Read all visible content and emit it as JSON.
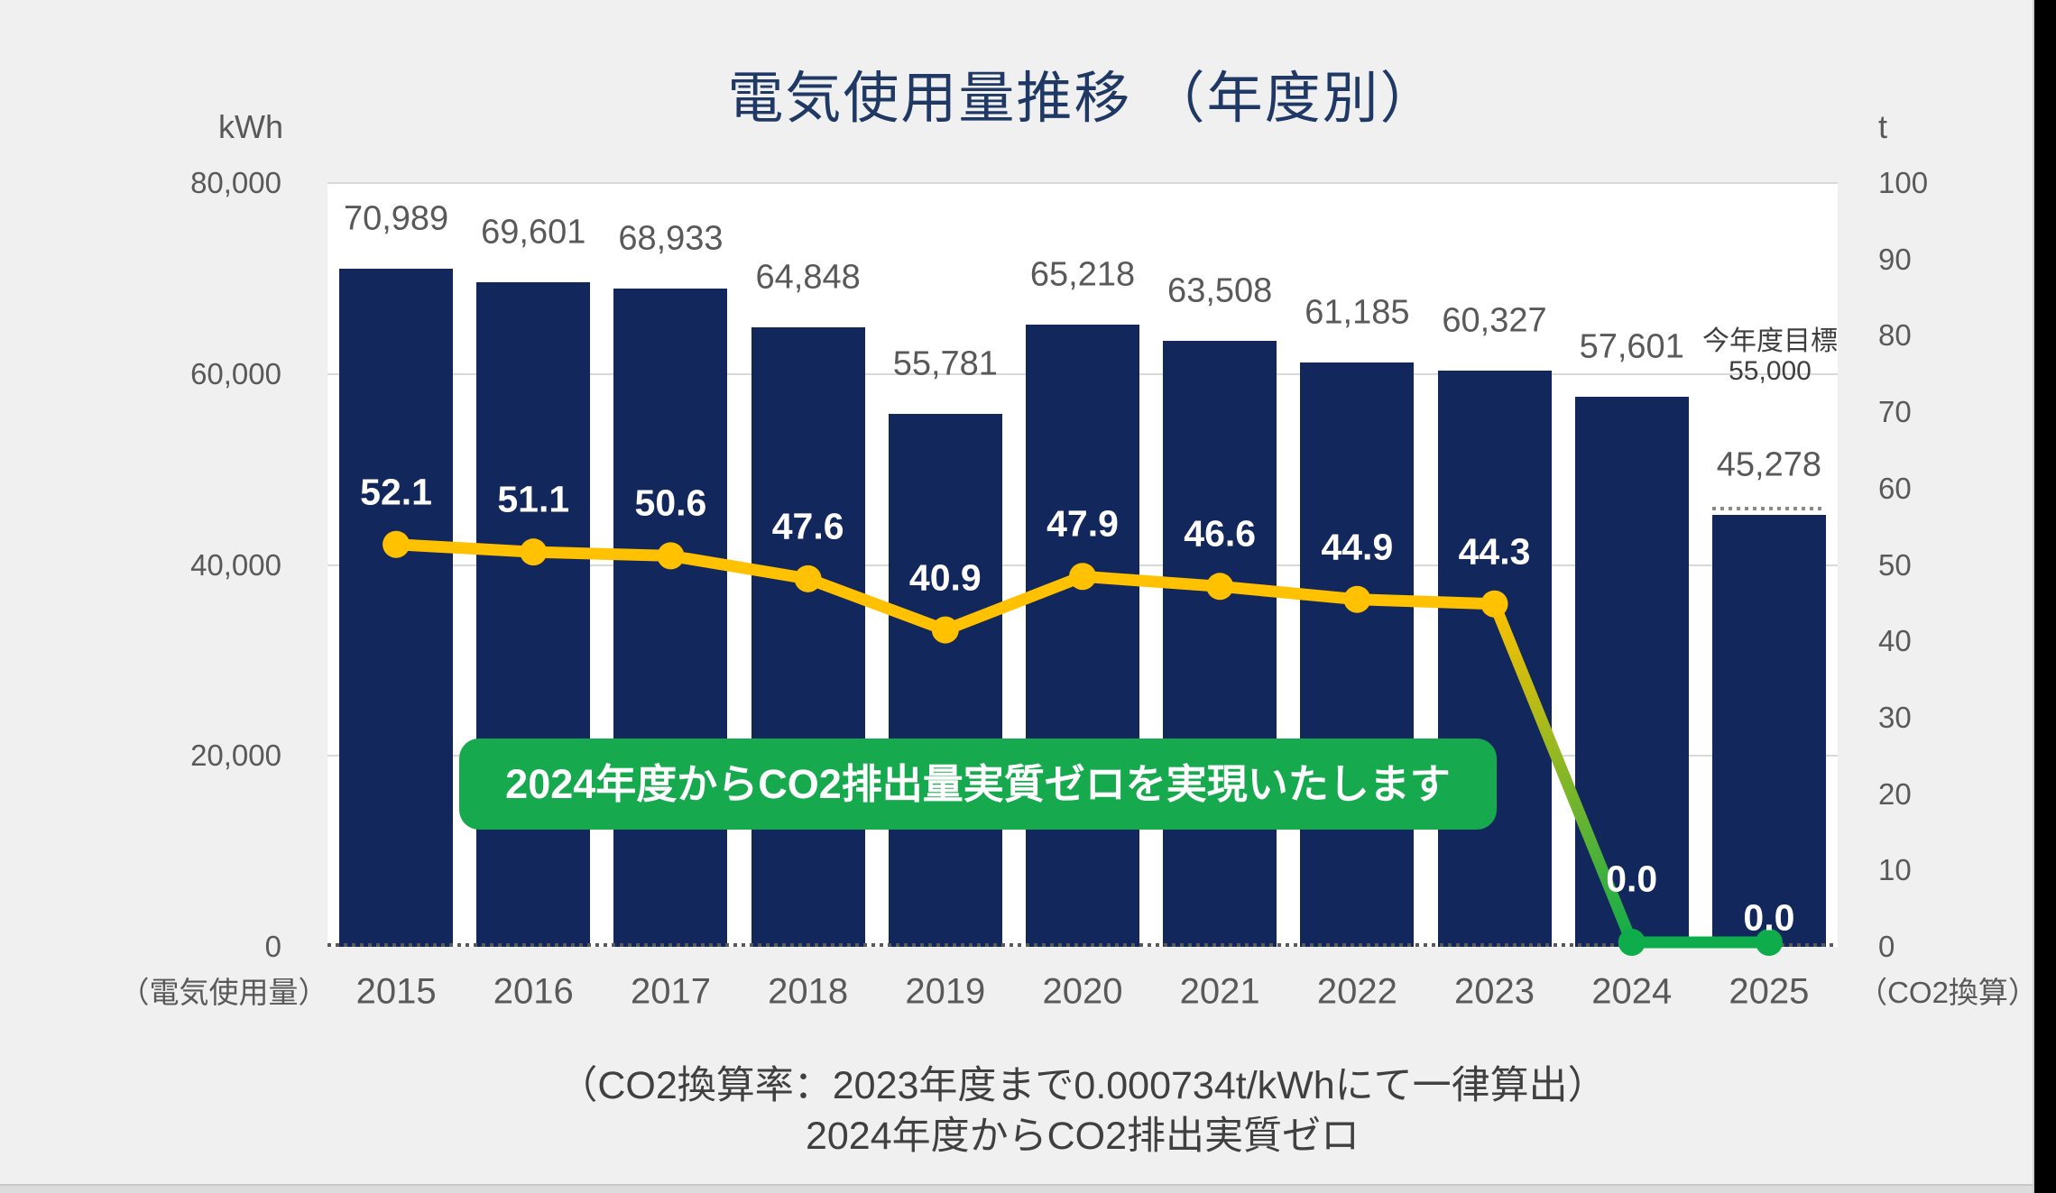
{
  "title": "電気使用量推移 （年度別）",
  "axes": {
    "left": {
      "unit": "kWh",
      "caption": "（電気使用量）",
      "tick_labels": [
        "80,000",
        "60,000",
        "40,000",
        "20,000",
        "0"
      ],
      "max": 80000
    },
    "right": {
      "unit": "t",
      "caption": "（CO2換算）",
      "tick_labels": [
        "100",
        "90",
        "80",
        "70",
        "60",
        "50",
        "40",
        "30",
        "20",
        "10",
        "0"
      ],
      "max": 100
    }
  },
  "chart_data": {
    "type": "bar+line",
    "title": "電気使用量推移 （年度別）",
    "categories": [
      "2015",
      "2016",
      "2017",
      "2018",
      "2019",
      "2020",
      "2021",
      "2022",
      "2023",
      "2024",
      "2025"
    ],
    "series": [
      {
        "name": "電気使用量",
        "type": "bar",
        "axis": "left",
        "unit": "kWh",
        "values": [
          70989,
          69601,
          68933,
          64848,
          55781,
          65218,
          63508,
          61185,
          60327,
          57601,
          45278
        ],
        "labels": [
          "70,989",
          "69,601",
          "68,933",
          "64,848",
          "55,781",
          "65,218",
          "63,508",
          "61,185",
          "60,327",
          "57,601",
          "45,278"
        ]
      },
      {
        "name": "CO2換算",
        "type": "line",
        "axis": "right",
        "unit": "t",
        "values": [
          52.1,
          51.1,
          50.6,
          47.6,
          40.9,
          47.9,
          46.6,
          44.9,
          44.3,
          0.0,
          0.0
        ],
        "labels": [
          "52.1",
          "51.1",
          "50.6",
          "47.6",
          "40.9",
          "47.9",
          "46.6",
          "44.9",
          "44.3",
          "0.0",
          "0.0"
        ]
      }
    ],
    "ylim_left": [
      0,
      80000
    ],
    "ylim_right": [
      0,
      100
    ],
    "grid": true,
    "legend": "none",
    "forecast_bar_index": 10,
    "line_green_from_index": 9,
    "target_annotation": {
      "line1": "今年度目標",
      "line2": "55,000"
    }
  },
  "banner": {
    "text": "2024年度からCO2排出量実質ゼロを実現いたします"
  },
  "footer": {
    "line1": "（CO2換算率：2023年度まで0.000734t/kWhにて一律算出）",
    "line2": "2024年度からCO2排出実質ゼロ"
  },
  "colors": {
    "bar": "#12275B",
    "line_yellow": "#FFC100",
    "line_green": "#0FAC4C",
    "banner_green": "#16A94E",
    "title": "#1F3864",
    "background": "#F0F0F1",
    "plot_background": "#FFFFFF",
    "gridline": "#D9D9D9",
    "axis_label": "#595959",
    "bar_label": "#595959",
    "line_label": "#FFFFFF",
    "footer_text": "#404040"
  }
}
